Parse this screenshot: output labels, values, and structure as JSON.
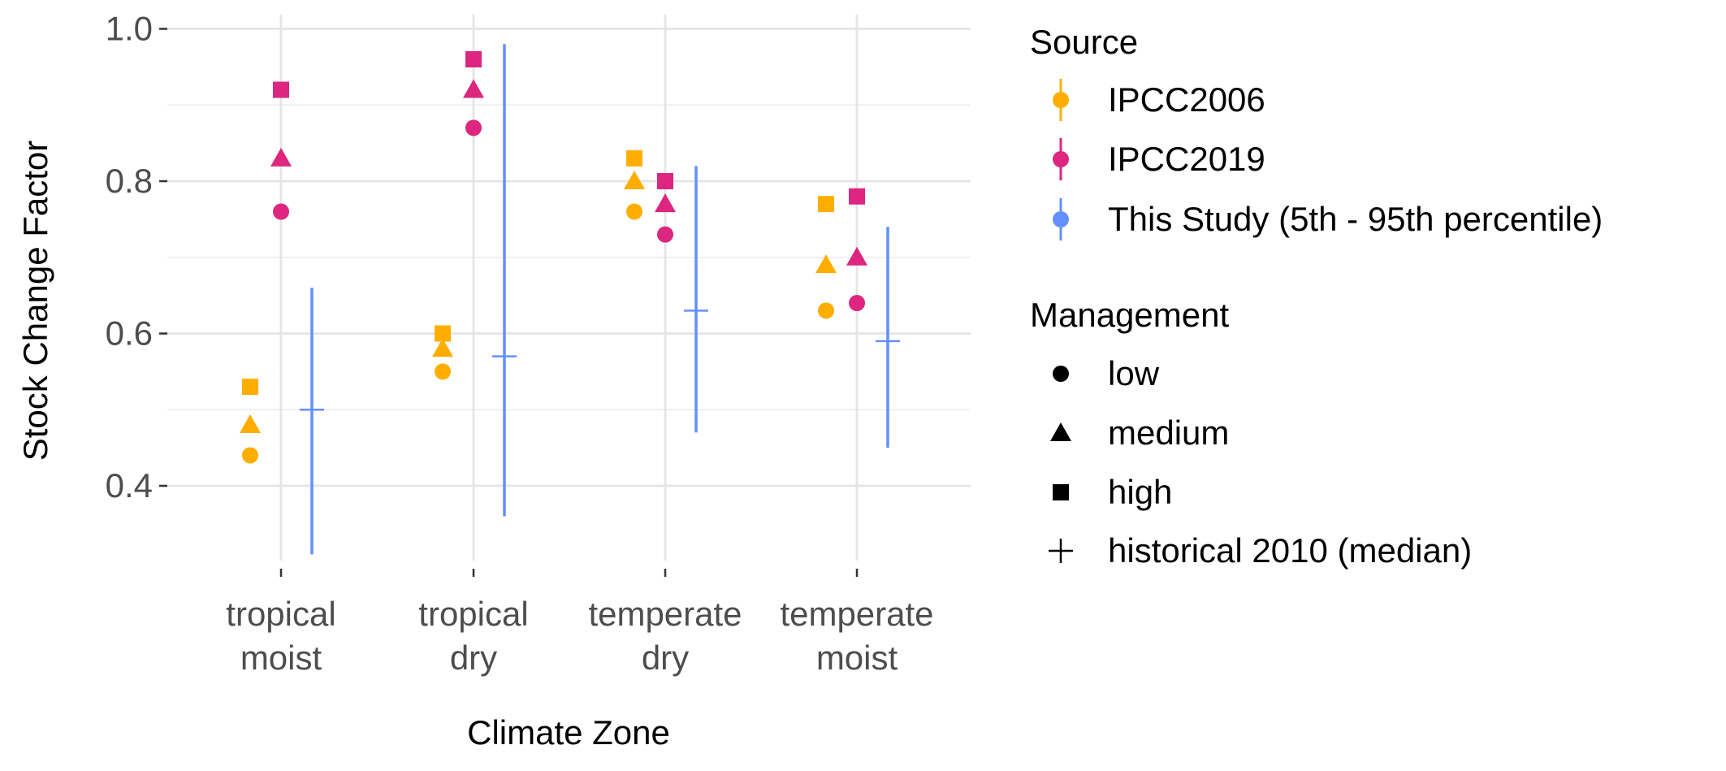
{
  "chart_data": {
    "type": "scatter",
    "xlabel": "Climate Zone",
    "ylabel": "Stock Change Factor",
    "ylim": [
      0.3,
      1.0
    ],
    "yticks": [
      0.4,
      0.6,
      0.8,
      1.0
    ],
    "ytick_labels": [
      "0.4",
      "0.6",
      "0.8",
      "1.0"
    ],
    "grid": true,
    "legend_position": "right",
    "categories": [
      {
        "id": "tropical-moist",
        "line1": "tropical",
        "line2": "moist"
      },
      {
        "id": "tropical-dry",
        "line1": "tropical",
        "line2": "dry"
      },
      {
        "id": "temperate-dry",
        "line1": "temperate",
        "line2": "dry"
      },
      {
        "id": "temperate-moist",
        "line1": "temperate",
        "line2": "moist"
      }
    ],
    "sources": [
      {
        "name": "IPCC2006",
        "color": "#FFAE00"
      },
      {
        "name": "IPCC2019",
        "color": "#DC267F"
      },
      {
        "name": "This Study (5th - 95th percentile)",
        "color": "#648FFF"
      }
    ],
    "management_levels": [
      {
        "name": "low",
        "shape": "circle"
      },
      {
        "name": "medium",
        "shape": "triangle"
      },
      {
        "name": "high",
        "shape": "square"
      },
      {
        "name": "historical 2010 (median)",
        "shape": "plus"
      }
    ],
    "series": [
      {
        "source": "IPCC2006",
        "points": [
          {
            "category": "tropical-moist",
            "low": 0.44,
            "medium": 0.48,
            "high": 0.53
          },
          {
            "category": "tropical-dry",
            "low": 0.55,
            "medium": 0.58,
            "high": 0.6
          },
          {
            "category": "temperate-dry",
            "low": 0.76,
            "medium": 0.8,
            "high": 0.83
          },
          {
            "category": "temperate-moist",
            "low": 0.63,
            "medium": 0.69,
            "high": 0.77
          }
        ]
      },
      {
        "source": "IPCC2019",
        "points": [
          {
            "category": "tropical-moist",
            "low": 0.76,
            "medium": 0.83,
            "high": 0.92
          },
          {
            "category": "tropical-dry",
            "low": 0.87,
            "medium": 0.92,
            "high": 0.96
          },
          {
            "category": "temperate-dry",
            "low": 0.73,
            "medium": 0.77,
            "high": 0.8
          },
          {
            "category": "temperate-moist",
            "low": 0.64,
            "medium": 0.7,
            "high": 0.78
          }
        ]
      },
      {
        "source": "This Study (5th - 95th percentile)",
        "points": [
          {
            "category": "tropical-moist",
            "median": 0.5,
            "p5": 0.31,
            "p95": 0.66
          },
          {
            "category": "tropical-dry",
            "median": 0.57,
            "p5": 0.36,
            "p95": 0.98
          },
          {
            "category": "temperate-dry",
            "median": 0.63,
            "p5": 0.47,
            "p95": 0.82
          },
          {
            "category": "temperate-moist",
            "median": 0.59,
            "p5": 0.45,
            "p95": 0.74
          }
        ]
      }
    ]
  },
  "legend": {
    "source_title": "Source",
    "management_title": "Management"
  }
}
